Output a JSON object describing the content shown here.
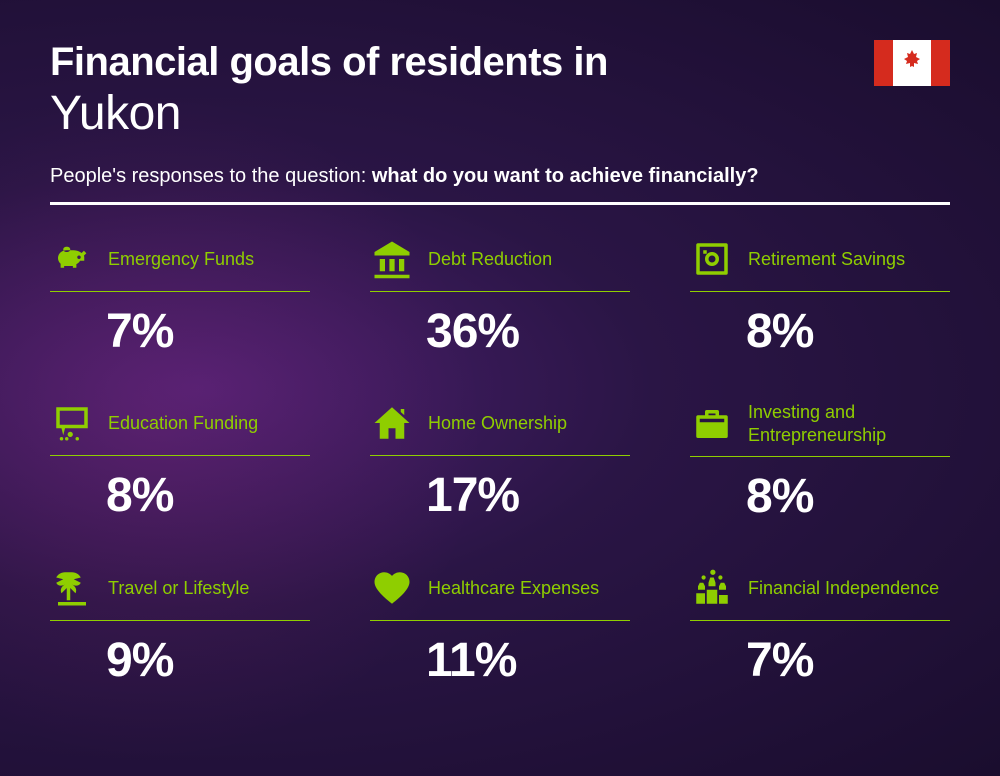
{
  "type": "infographic",
  "background_color": "#1a0d2e",
  "accent_color": "#8fce00",
  "text_color": "#ffffff",
  "header": {
    "title_prefix": "Financial goals of residents in",
    "region": "Yukon",
    "subtitle_lead": "People's responses to the question: ",
    "subtitle_bold": "what do you want to achieve financially?",
    "flag": "canada",
    "title_fontsize": 40,
    "region_fontsize": 48,
    "subtitle_fontsize": 20
  },
  "items": [
    {
      "label": "Emergency Funds",
      "value": "7%",
      "icon": "piggy-bank"
    },
    {
      "label": "Debt Reduction",
      "value": "36%",
      "icon": "bank"
    },
    {
      "label": "Retirement Savings",
      "value": "8%",
      "icon": "safe"
    },
    {
      "label": "Education Funding",
      "value": "8%",
      "icon": "presentation"
    },
    {
      "label": "Home Ownership",
      "value": "17%",
      "icon": "house"
    },
    {
      "label": "Investing and Entrepreneurship",
      "value": "8%",
      "icon": "briefcase"
    },
    {
      "label": "Travel or Lifestyle",
      "value": "9%",
      "icon": "palm"
    },
    {
      "label": "Healthcare Expenses",
      "value": "11%",
      "icon": "heart-pulse"
    },
    {
      "label": "Financial Independence",
      "value": "7%",
      "icon": "podium"
    }
  ],
  "style": {
    "label_fontsize": 18,
    "value_fontsize": 48,
    "icon_size": 42,
    "grid_columns": 3
  }
}
